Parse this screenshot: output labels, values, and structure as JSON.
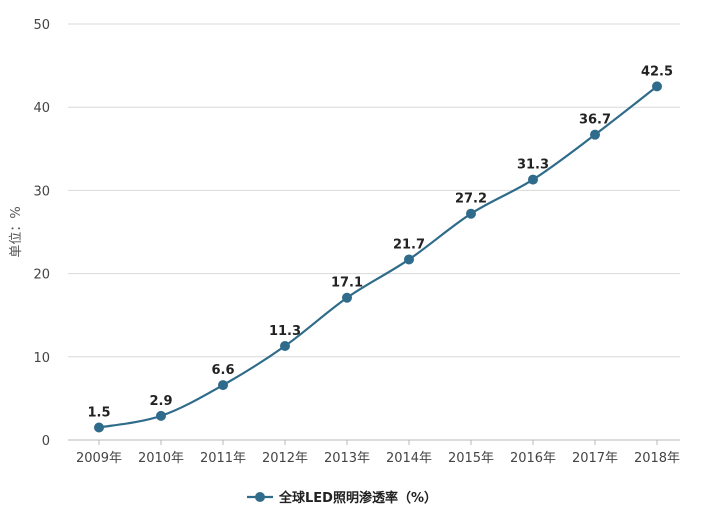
{
  "chart_data": {
    "type": "line",
    "title": "",
    "xlabel": "",
    "ylabel": "单位：%",
    "ylim": [
      0,
      50
    ],
    "yticks": [
      "0",
      "10",
      "20",
      "30",
      "40",
      "50"
    ],
    "grid": true,
    "legend_position": "bottom",
    "categories": [
      "2009年",
      "2010年",
      "2011年",
      "2012年",
      "2013年",
      "2014年",
      "2015年",
      "2016年",
      "2017年",
      "2018年"
    ],
    "series": [
      {
        "name": "全球LED照明渗透率（%）",
        "values": [
          1.5,
          2.9,
          6.6,
          11.3,
          17.1,
          21.7,
          27.2,
          31.3,
          36.7,
          42.5
        ],
        "labels": [
          "1.5",
          "2.9",
          "6.6",
          "11.3",
          "17.1",
          "21.7",
          "27.2",
          "31.3",
          "36.7",
          "42.5"
        ],
        "color": "#2f6b8a"
      }
    ]
  }
}
